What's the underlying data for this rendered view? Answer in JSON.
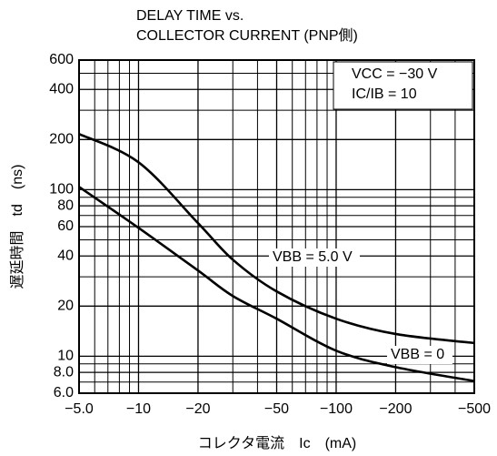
{
  "chart_data": {
    "type": "line",
    "title": [
      "DELAY TIME vs.",
      "COLLECTOR CURRENT (PNP側)"
    ],
    "xlabel": "コレクタ電流　Ic　(mA)",
    "ylabel": "遅延時間　td　(ns)",
    "log_x": true,
    "log_y": true,
    "grid": true,
    "annotations": [
      "VCC = −30 V",
      "IC/IB = 10"
    ],
    "x": [
      -5,
      -10,
      -20,
      -30,
      -50,
      -100,
      -200,
      -500
    ],
    "series": [
      {
        "name": "VBB = 5.0 V",
        "color": "#000000",
        "values": [
          216,
          146,
          63,
          38,
          24.5,
          16.8,
          13.6,
          12
        ]
      },
      {
        "name": "VBB = 0",
        "color": "#000000",
        "values": [
          104,
          59,
          32.7,
          23,
          16.8,
          10.8,
          8.6,
          7.1
        ]
      }
    ],
    "xlim": [
      -5,
      -500
    ],
    "xticks": [
      {
        "value": -5,
        "label": "−5.0"
      },
      {
        "value": -10,
        "label": "−10"
      },
      {
        "value": -20,
        "label": "−20"
      },
      {
        "value": -50,
        "label": "−50"
      },
      {
        "value": -100,
        "label": "−100"
      },
      {
        "value": -200,
        "label": "−200"
      },
      {
        "value": -500,
        "label": "−500"
      }
    ],
    "xminor": [
      -6,
      -7,
      -8,
      -9,
      -30,
      -40,
      -60,
      -70,
      -80,
      -90,
      -300,
      -400
    ],
    "ylim": [
      6,
      600
    ],
    "yticks": [
      {
        "value": 6,
        "label": "6.0"
      },
      {
        "value": 8,
        "label": "8.0"
      },
      10,
      20,
      40,
      60,
      80,
      100,
      200,
      400,
      600
    ],
    "yminor": [
      7,
      9,
      30,
      50,
      70,
      90,
      300,
      500
    ]
  }
}
